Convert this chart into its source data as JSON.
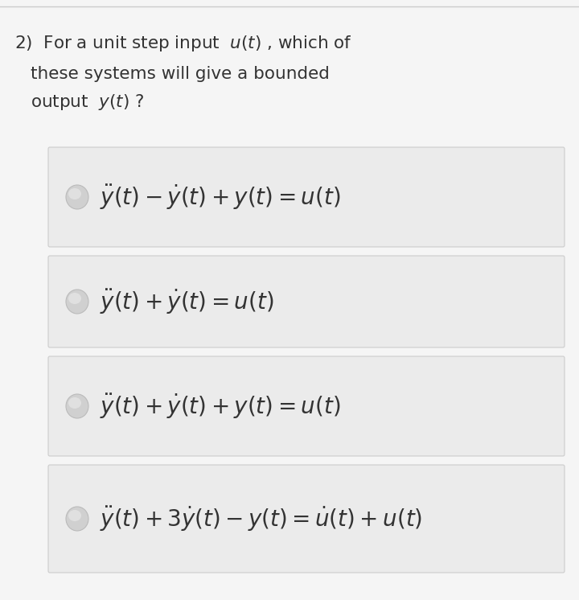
{
  "background_color": "#f5f5f5",
  "top_border_color": "#cccccc",
  "question_text_color": "#333333",
  "question_fontsize": 15.5,
  "option_fontsize": 20,
  "option_box_color": "#ebebeb",
  "option_box_edge_color": "#cccccc",
  "circle_face_color": "#d0d0d0",
  "circle_edge_color": "#bbbbbb",
  "options": [
    "$\\ddot{y}(t) - \\dot{y}(t) + y(t) = u(t)$",
    "$\\ddot{y}(t) + \\dot{y}(t) = u(t)$",
    "$\\ddot{y}(t) + \\dot{y}(t) + y(t) = u(t)$",
    "$\\ddot{y}(t) + 3\\dot{y}(t) - y(t) = \\dot{u}(t) + u(t)$"
  ],
  "fig_width": 7.2,
  "fig_height": 7.46,
  "dpi": 100
}
